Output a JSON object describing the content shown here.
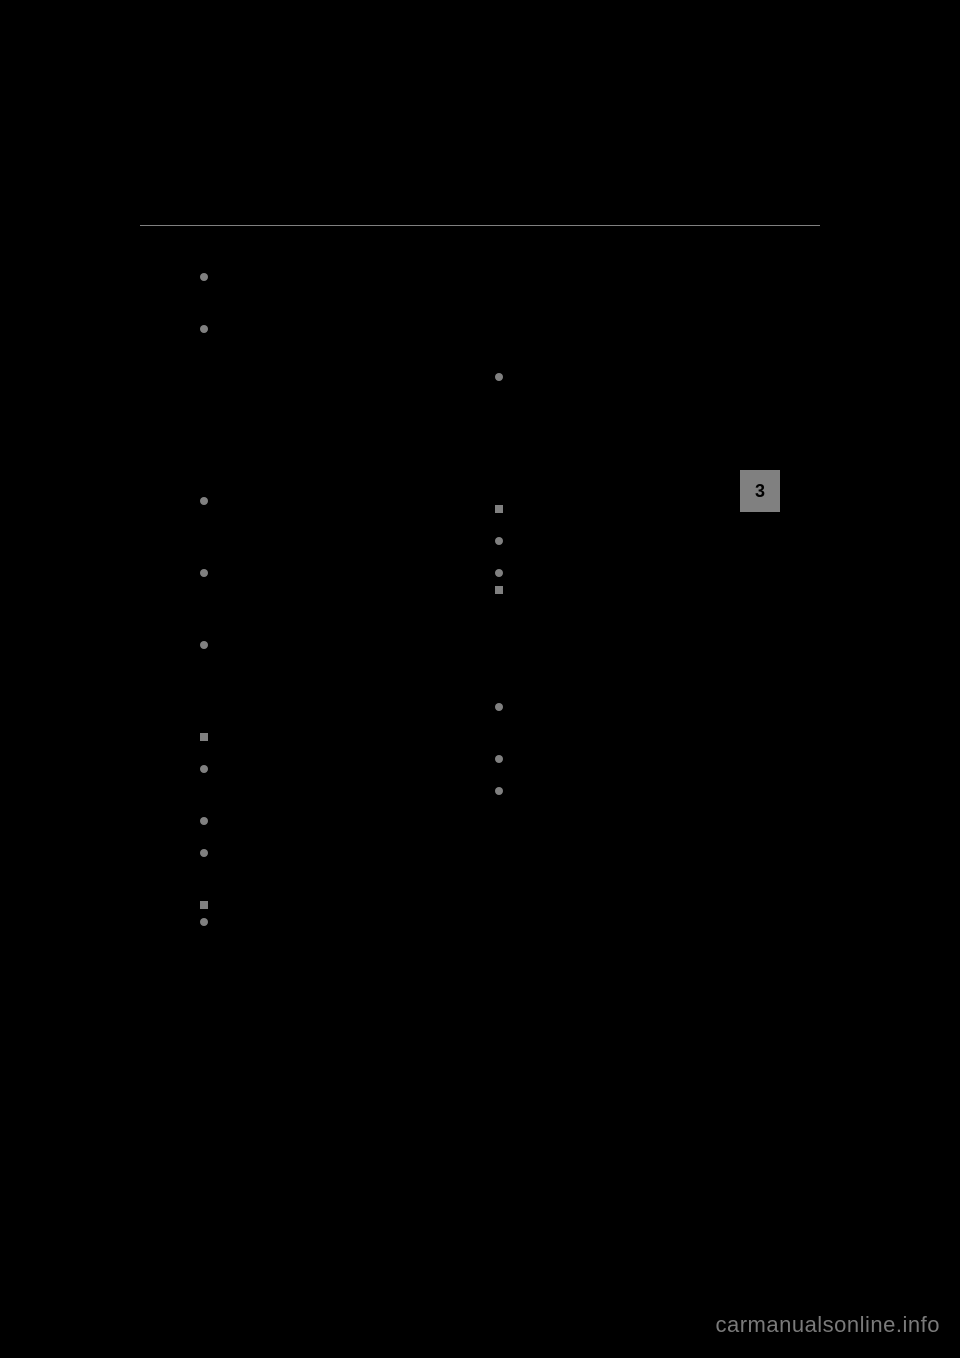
{
  "page": {
    "tab_number": "3",
    "watermark": "carmanualsonline.info",
    "background_color": "#000000",
    "accent_color": "#808080",
    "line_color": "#808080"
  },
  "left_column": [
    {
      "type": "circle",
      "text": ""
    },
    {
      "type": "spacer",
      "size": "md"
    },
    {
      "type": "circle",
      "text": ""
    },
    {
      "type": "spacer",
      "size": "xxl"
    },
    {
      "type": "spacer",
      "size": "lg"
    },
    {
      "type": "circle",
      "text": ""
    },
    {
      "type": "spacer",
      "size": "lg"
    },
    {
      "type": "circle",
      "text": ""
    },
    {
      "type": "spacer",
      "size": "lg"
    },
    {
      "type": "circle",
      "text": ""
    },
    {
      "type": "spacer",
      "size": "xl"
    },
    {
      "type": "square",
      "text": ""
    },
    {
      "type": "spacer",
      "size": "sm"
    },
    {
      "type": "circle",
      "text": ""
    },
    {
      "type": "spacer",
      "size": "md"
    },
    {
      "type": "circle",
      "text": ""
    },
    {
      "type": "spacer",
      "size": "sm"
    },
    {
      "type": "circle",
      "text": ""
    },
    {
      "type": "spacer",
      "size": "md"
    },
    {
      "type": "square",
      "text": ""
    },
    {
      "type": "circle",
      "text": ""
    }
  ],
  "right_column": [
    {
      "type": "spacer",
      "size": "xxl"
    },
    {
      "type": "circle",
      "text": ""
    },
    {
      "type": "spacer",
      "size": "xxl"
    },
    {
      "type": "spacer",
      "size": "sm"
    },
    {
      "type": "square",
      "text": ""
    },
    {
      "type": "spacer",
      "size": "sm"
    },
    {
      "type": "circle",
      "text": ""
    },
    {
      "type": "spacer",
      "size": "sm"
    },
    {
      "type": "circle",
      "text": ""
    },
    {
      "type": "square",
      "text": ""
    },
    {
      "type": "spacer",
      "size": "xxl"
    },
    {
      "type": "circle",
      "text": ""
    },
    {
      "type": "spacer",
      "size": "md"
    },
    {
      "type": "circle",
      "text": ""
    },
    {
      "type": "spacer",
      "size": "sm"
    },
    {
      "type": "circle",
      "text": ""
    }
  ]
}
